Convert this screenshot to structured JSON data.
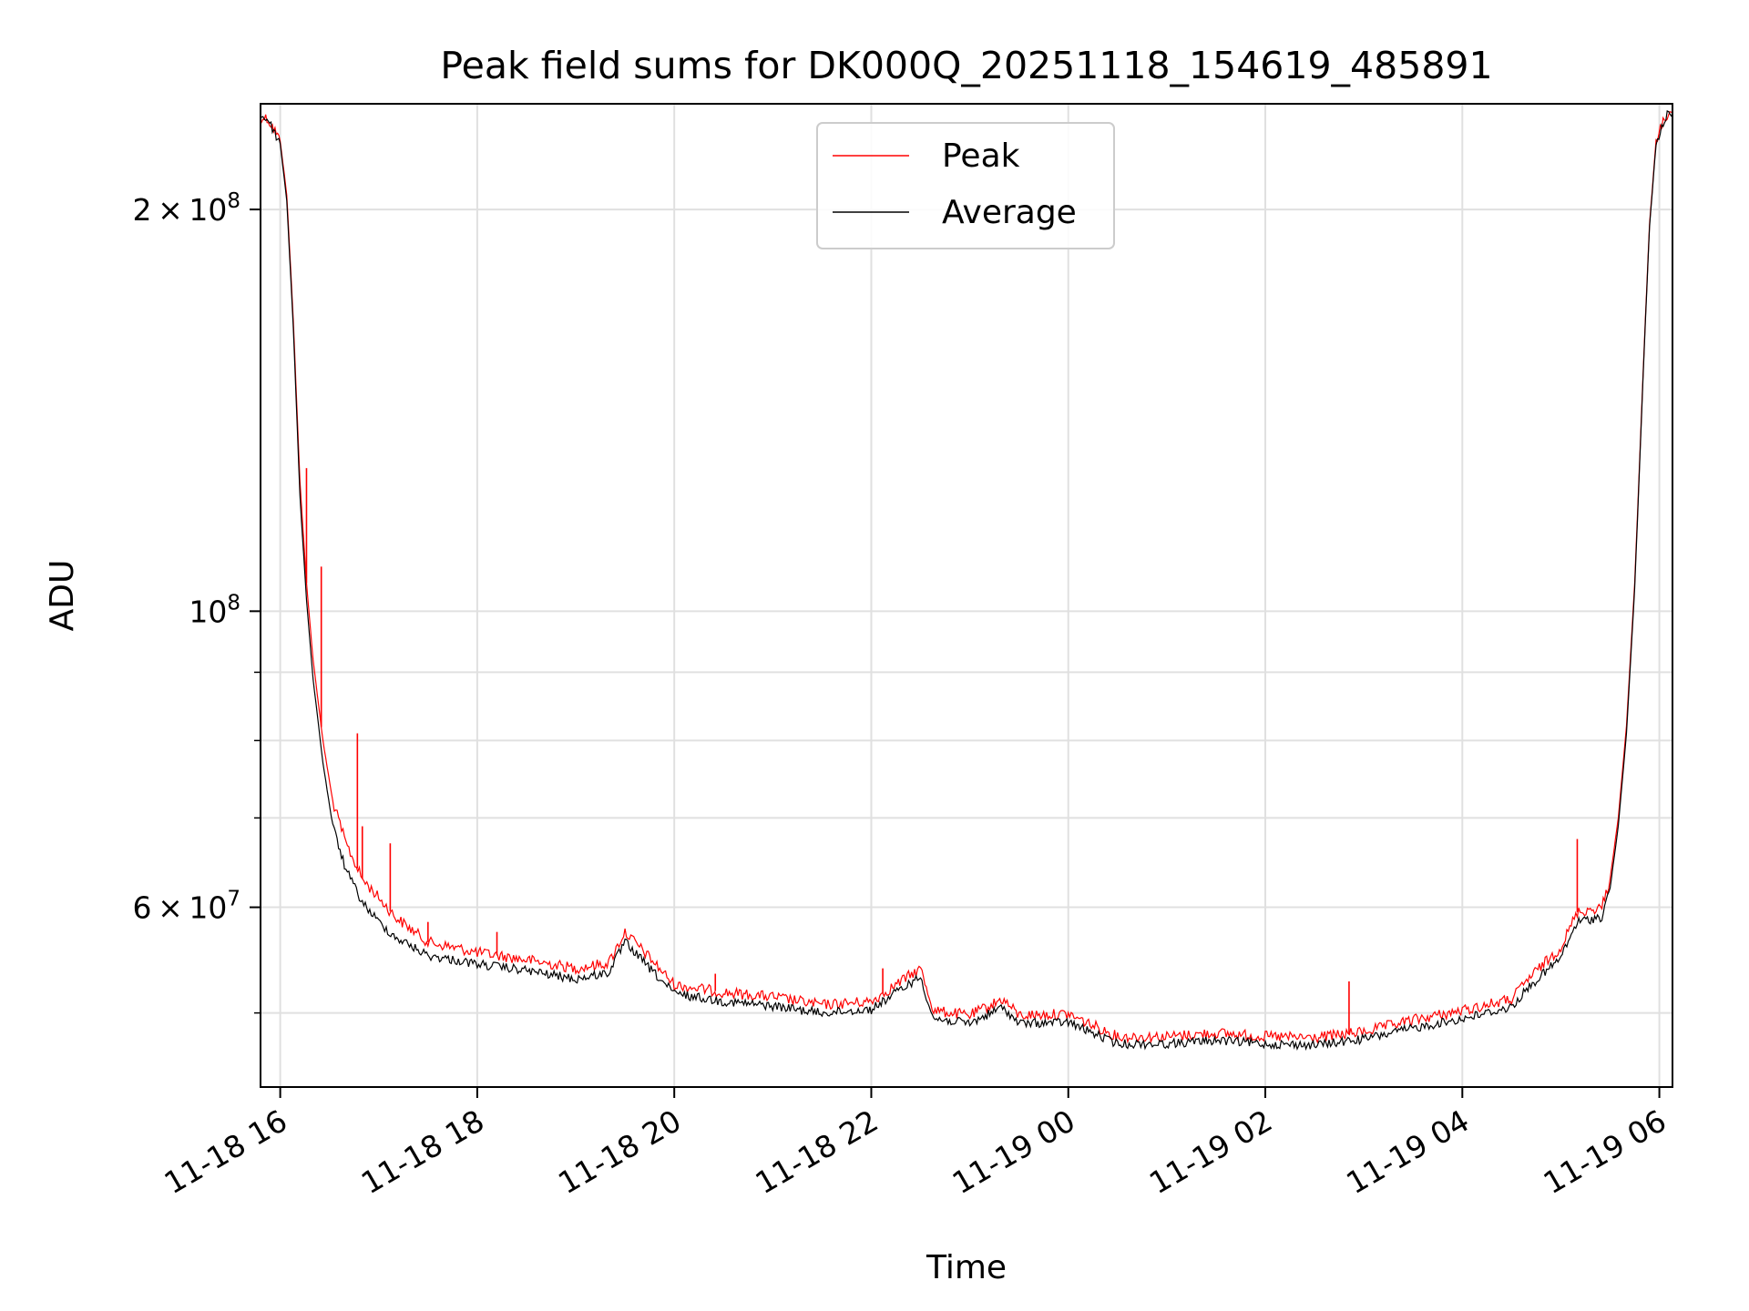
{
  "chart_data": {
    "type": "line",
    "title": "Peak field sums for DK000Q_20251118_154619_485891",
    "xlabel": "Time",
    "ylabel": "ADU",
    "yscale": "log",
    "ylim": [
      44000000,
      240000000
    ],
    "xlim": [
      "2025-11-18 15:48",
      "2025-11-19 06:08"
    ],
    "grid": true,
    "legend_position": "upper center",
    "x_ticks": [
      {
        "label": "11-18 16",
        "value": "2025-11-18 16:00"
      },
      {
        "label": "11-18 18",
        "value": "2025-11-18 18:00"
      },
      {
        "label": "11-18 20",
        "value": "2025-11-18 20:00"
      },
      {
        "label": "11-18 22",
        "value": "2025-11-18 22:00"
      },
      {
        "label": "11-19 00",
        "value": "2025-11-19 00:00"
      },
      {
        "label": "11-19 02",
        "value": "2025-11-19 02:00"
      },
      {
        "label": "11-19 04",
        "value": "2025-11-19 04:00"
      },
      {
        "label": "11-19 06",
        "value": "2025-11-19 06:00"
      }
    ],
    "y_major_ticks": [
      {
        "value": 60000000,
        "base": "6",
        "mult": "×",
        "pow": "10",
        "exp": "7"
      },
      {
        "value": 100000000,
        "base": "",
        "mult": "",
        "pow": "10",
        "exp": "8"
      },
      {
        "value": 200000000,
        "base": "2",
        "mult": "×",
        "pow": "10",
        "exp": "8"
      }
    ],
    "y_minor_ticks": [
      50000000,
      70000000,
      80000000,
      90000000
    ],
    "series": [
      {
        "name": "Peak",
        "color": "#ff0000",
        "points": [
          [
            "2025-11-18 15:46",
            235000000
          ],
          [
            "2025-11-18 15:52",
            234000000
          ],
          [
            "2025-11-18 15:56",
            230000000
          ],
          [
            "2025-11-18 16:00",
            225000000
          ],
          [
            "2025-11-18 16:04",
            205000000
          ],
          [
            "2025-11-18 16:08",
            165000000
          ],
          [
            "2025-11-18 16:12",
            125000000
          ],
          [
            "2025-11-18 16:16",
            105000000
          ],
          [
            "2025-11-18 16:20",
            92000000
          ],
          [
            "2025-11-18 16:26",
            80000000
          ],
          [
            "2025-11-18 16:32",
            72000000
          ],
          [
            "2025-11-18 16:40",
            67000000
          ],
          [
            "2025-11-18 16:50",
            63000000
          ],
          [
            "2025-11-18 17:00",
            61000000
          ],
          [
            "2025-11-18 17:10",
            59000000
          ],
          [
            "2025-11-18 17:30",
            56500000
          ],
          [
            "2025-11-18 18:00",
            55500000
          ],
          [
            "2025-11-18 18:30",
            54800000
          ],
          [
            "2025-11-18 19:00",
            54000000
          ],
          [
            "2025-11-18 19:20",
            54500000
          ],
          [
            "2025-11-18 19:30",
            57500000
          ],
          [
            "2025-11-18 19:45",
            55000000
          ],
          [
            "2025-11-18 20:00",
            52500000
          ],
          [
            "2025-11-18 20:30",
            51800000
          ],
          [
            "2025-11-18 21:00",
            51400000
          ],
          [
            "2025-11-18 21:30",
            50700000
          ],
          [
            "2025-11-18 22:00",
            51000000
          ],
          [
            "2025-11-18 22:20",
            53000000
          ],
          [
            "2025-11-18 22:30",
            54000000
          ],
          [
            "2025-11-18 22:38",
            50200000
          ],
          [
            "2025-11-18 23:00",
            49800000
          ],
          [
            "2025-11-18 23:20",
            51200000
          ],
          [
            "2025-11-18 23:30",
            49800000
          ],
          [
            "2025-11-19 00:00",
            49900000
          ],
          [
            "2025-11-19 00:30",
            48000000
          ],
          [
            "2025-11-19 01:00",
            48000000
          ],
          [
            "2025-11-19 01:30",
            48300000
          ],
          [
            "2025-11-19 02:00",
            48000000
          ],
          [
            "2025-11-19 02:30",
            47900000
          ],
          [
            "2025-11-19 03:00",
            48400000
          ],
          [
            "2025-11-19 03:30",
            49400000
          ],
          [
            "2025-11-19 04:00",
            50200000
          ],
          [
            "2025-11-19 04:30",
            51200000
          ],
          [
            "2025-11-19 04:40",
            53000000
          ],
          [
            "2025-11-19 05:00",
            56000000
          ],
          [
            "2025-11-19 05:10",
            59500000
          ],
          [
            "2025-11-19 05:25",
            60000000
          ],
          [
            "2025-11-19 05:30",
            63000000
          ],
          [
            "2025-11-19 05:35",
            70000000
          ],
          [
            "2025-11-19 05:40",
            82000000
          ],
          [
            "2025-11-19 05:45",
            105000000
          ],
          [
            "2025-11-19 05:50",
            150000000
          ],
          [
            "2025-11-19 05:54",
            195000000
          ],
          [
            "2025-11-19 05:58",
            225000000
          ],
          [
            "2025-11-19 06:04",
            235000000
          ],
          [
            "2025-11-19 06:08",
            236000000
          ]
        ],
        "spikes": [
          [
            "2025-11-18 16:16",
            128000000
          ],
          [
            "2025-11-18 16:25",
            108000000
          ],
          [
            "2025-11-18 16:47",
            81000000
          ],
          [
            "2025-11-18 16:50",
            69000000
          ],
          [
            "2025-11-18 17:07",
            67000000
          ],
          [
            "2025-11-18 17:30",
            58500000
          ],
          [
            "2025-11-18 18:12",
            57500000
          ],
          [
            "2025-11-18 20:25",
            53500000
          ],
          [
            "2025-11-18 22:07",
            54000000
          ],
          [
            "2025-11-19 02:51",
            52800000
          ],
          [
            "2025-11-19 05:10",
            67500000
          ]
        ]
      },
      {
        "name": "Average",
        "color": "#000000",
        "points": [
          [
            "2025-11-18 15:46",
            235000000
          ],
          [
            "2025-11-18 15:52",
            234000000
          ],
          [
            "2025-11-18 15:56",
            229000000
          ],
          [
            "2025-11-18 16:00",
            224000000
          ],
          [
            "2025-11-18 16:04",
            203000000
          ],
          [
            "2025-11-18 16:08",
            163000000
          ],
          [
            "2025-11-18 16:12",
            122000000
          ],
          [
            "2025-11-18 16:16",
            102000000
          ],
          [
            "2025-11-18 16:20",
            89000000
          ],
          [
            "2025-11-18 16:26",
            77000000
          ],
          [
            "2025-11-18 16:32",
            69000000
          ],
          [
            "2025-11-18 16:40",
            64000000
          ],
          [
            "2025-11-18 16:50",
            60500000
          ],
          [
            "2025-11-18 17:00",
            58500000
          ],
          [
            "2025-11-18 17:10",
            57000000
          ],
          [
            "2025-11-18 17:30",
            55200000
          ],
          [
            "2025-11-18 18:00",
            54400000
          ],
          [
            "2025-11-18 18:30",
            53800000
          ],
          [
            "2025-11-18 19:00",
            53000000
          ],
          [
            "2025-11-18 19:20",
            53600000
          ],
          [
            "2025-11-18 19:30",
            56500000
          ],
          [
            "2025-11-18 19:45",
            54000000
          ],
          [
            "2025-11-18 20:00",
            51700000
          ],
          [
            "2025-11-18 20:30",
            51000000
          ],
          [
            "2025-11-18 21:00",
            50600000
          ],
          [
            "2025-11-18 21:30",
            50000000
          ],
          [
            "2025-11-18 22:00",
            50300000
          ],
          [
            "2025-11-18 22:20",
            52300000
          ],
          [
            "2025-11-18 22:30",
            53200000
          ],
          [
            "2025-11-18 22:38",
            49500000
          ],
          [
            "2025-11-18 23:00",
            49100000
          ],
          [
            "2025-11-18 23:20",
            50500000
          ],
          [
            "2025-11-18 23:30",
            49100000
          ],
          [
            "2025-11-19 00:00",
            49200000
          ],
          [
            "2025-11-19 00:30",
            47400000
          ],
          [
            "2025-11-19 01:00",
            47400000
          ],
          [
            "2025-11-19 01:30",
            47700000
          ],
          [
            "2025-11-19 02:00",
            47400000
          ],
          [
            "2025-11-19 02:30",
            47300000
          ],
          [
            "2025-11-19 03:00",
            47800000
          ],
          [
            "2025-11-19 03:30",
            48700000
          ],
          [
            "2025-11-19 04:00",
            49500000
          ],
          [
            "2025-11-19 04:30",
            50500000
          ],
          [
            "2025-11-19 04:40",
            52200000
          ],
          [
            "2025-11-19 05:00",
            55000000
          ],
          [
            "2025-11-19 05:10",
            58500000
          ],
          [
            "2025-11-19 05:25",
            59000000
          ],
          [
            "2025-11-19 05:30",
            62000000
          ],
          [
            "2025-11-19 05:35",
            69000000
          ],
          [
            "2025-11-19 05:40",
            81000000
          ],
          [
            "2025-11-19 05:45",
            104000000
          ],
          [
            "2025-11-19 05:50",
            149000000
          ],
          [
            "2025-11-19 05:54",
            194000000
          ],
          [
            "2025-11-19 05:58",
            224000000
          ],
          [
            "2025-11-19 06:04",
            235000000
          ],
          [
            "2025-11-19 06:08",
            236000000
          ]
        ]
      }
    ]
  }
}
